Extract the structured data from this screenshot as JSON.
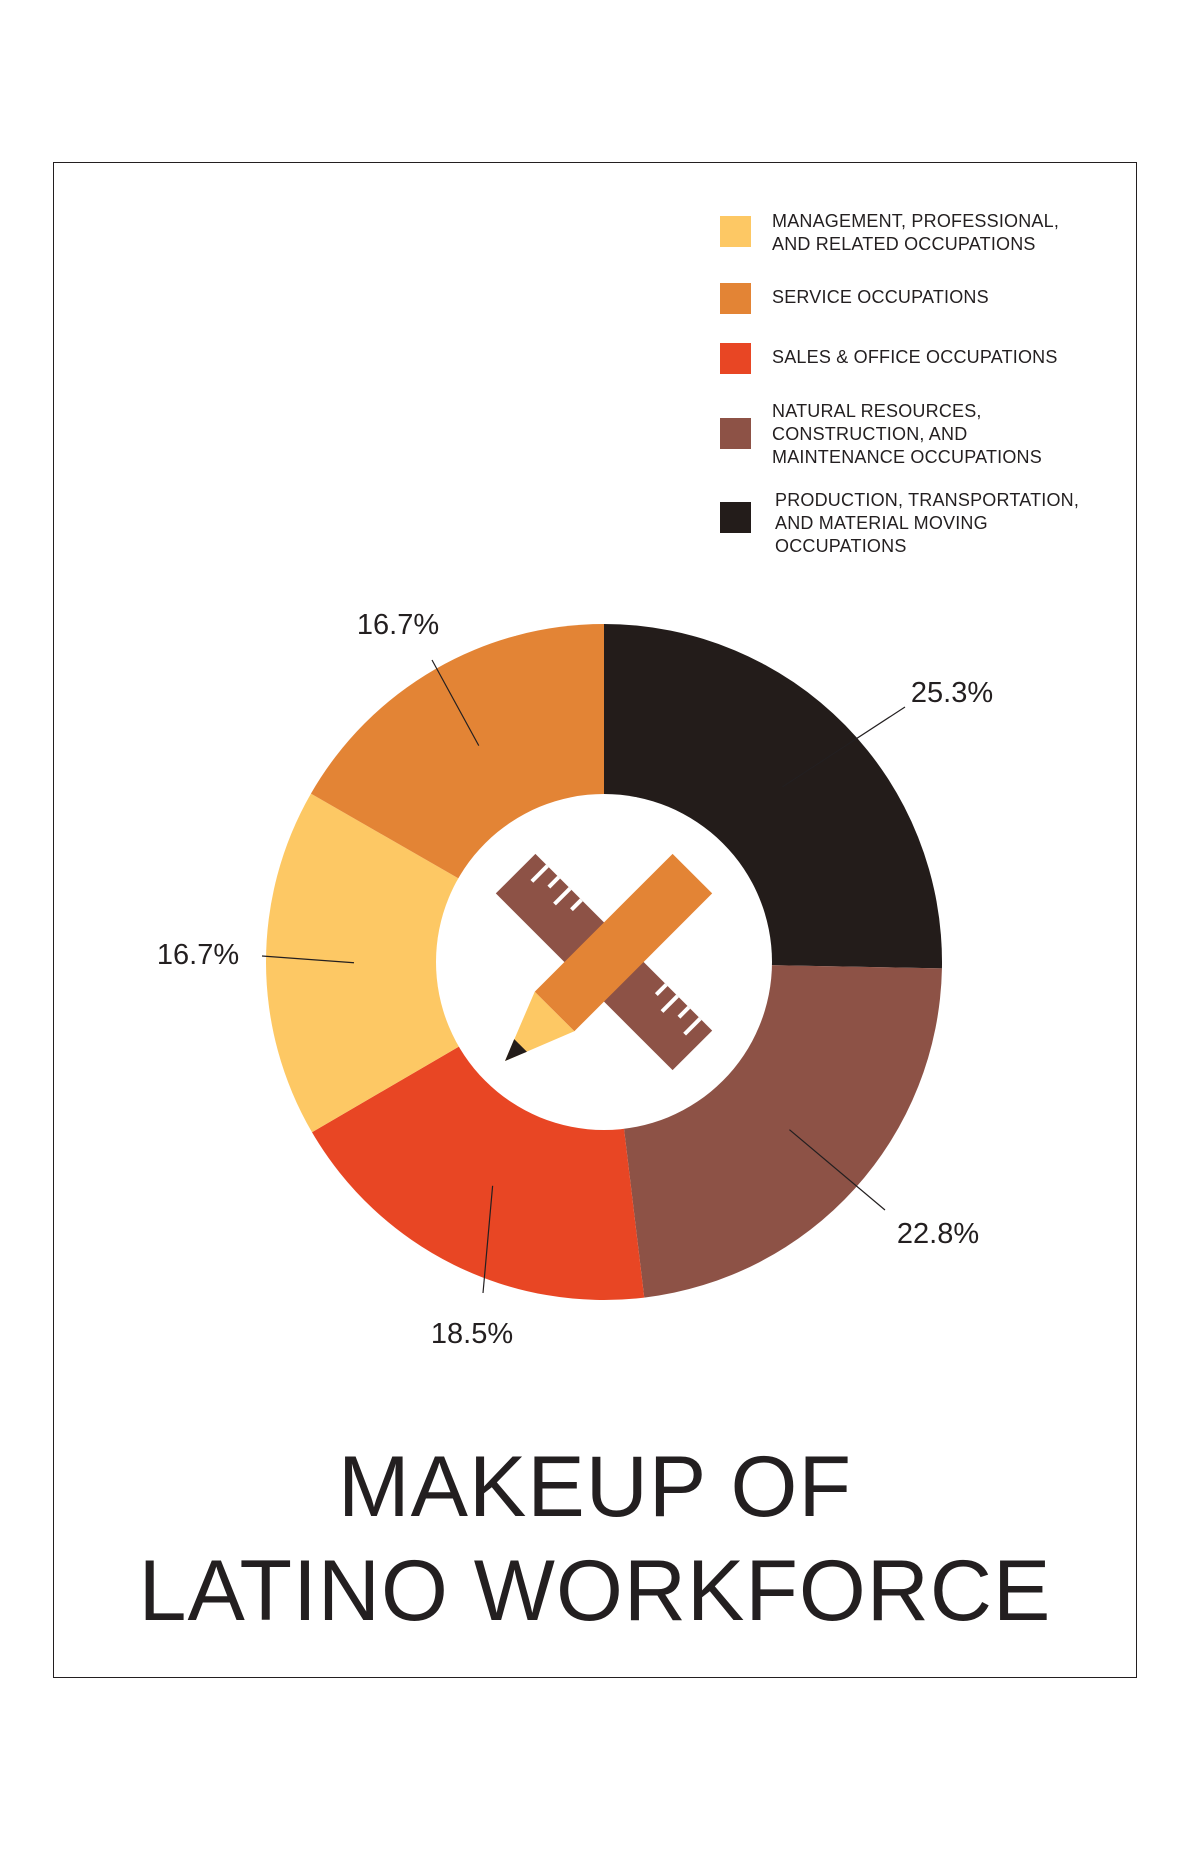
{
  "chart_data": {
    "type": "pie",
    "title_lines": [
      "MAKEUP OF",
      "LATINO WORKFORCE"
    ],
    "legend_position": "top-right",
    "slices": [
      {
        "name": "MANAGEMENT, PROFESSIONAL,\nAND RELATED OCCUPATIONS",
        "value": 16.7,
        "label": "16.7%",
        "color": "#fdc864"
      },
      {
        "name": "SERVICE OCCUPATIONS",
        "value": 16.7,
        "label": "16.7%",
        "color": "#e38435"
      },
      {
        "name": "SALES & OFFICE OCCUPATIONS",
        "value": 18.5,
        "label": "18.5%",
        "color": "#e84624"
      },
      {
        "name": "NATURAL RESOURCES,\nCONSTRUCTION, AND\nMAINTENANCE OCCUPATIONS",
        "value": 22.8,
        "label": "22.8%",
        "color": "#8d5246"
      },
      {
        "name": "PRODUCTION, TRANSPORTATION,\nAND MATERIAL MOVING\nOCCUPATIONS",
        "value": 25.3,
        "label": "25.3%",
        "color": "#231c1a"
      }
    ],
    "center_icon": "pencil-and-ruler-icon"
  }
}
